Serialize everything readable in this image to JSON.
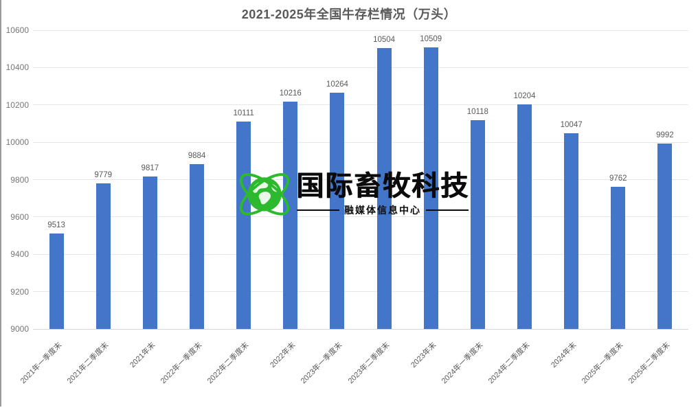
{
  "window": {
    "background": "#ffffff",
    "left_border_color": "#9a9a9a"
  },
  "chart_data": {
    "type": "bar",
    "title": "2021-2025年全国牛存栏情况（万头）",
    "categories": [
      "2021年一季度末",
      "2021年二季度末",
      "2021年末",
      "2022年一季度末",
      "2022年二季度末",
      "2022年末",
      "2023年一季度末",
      "2023年二季度末",
      "2023年末",
      "2024年一季度末",
      "2024年二季度末",
      "2024年末",
      "2025年一季度末",
      "2025年二季度末"
    ],
    "values": [
      9513,
      9779,
      9817,
      9884,
      10111,
      10216,
      10264,
      10504,
      10509,
      10118,
      10204,
      10047,
      9762,
      9992
    ],
    "xlabel": "",
    "ylabel": "",
    "ylim": [
      9000,
      10600
    ],
    "yticks": [
      9000,
      9200,
      9400,
      9600,
      9800,
      10000,
      10200,
      10400,
      10600
    ],
    "grid": true,
    "legend": "none",
    "value_labels_shown": true,
    "bar_color": "#4376C8",
    "value_label_color": "#595959",
    "tick_label_color": "#767676",
    "gridline_color": "#e7e7e7",
    "axis_line_color": "#d6d6d6",
    "title_color": "#595959"
  },
  "watermark": {
    "brand": "国际畜牧科技",
    "subtitle": "融媒体信息中心",
    "icon": "globe-orbit-icon",
    "icon_color": "#2DB92D",
    "text_color": "#0b0b0b"
  }
}
